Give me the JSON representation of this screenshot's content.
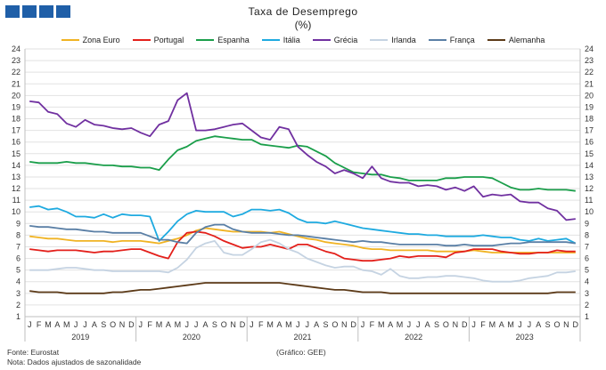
{
  "header": {
    "title": "Taxa de Desemprego",
    "unit": "(%)"
  },
  "footer": {
    "source": "Fonte: Eurostat",
    "note": "Nota: Dados ajustados de sazonalidade",
    "credit": "(Gráfico: GEE)"
  },
  "chart_data": {
    "type": "line",
    "title": "Taxa de Desemprego",
    "subtitle": "(%)",
    "xlabel": "",
    "ylabel": "",
    "ylim": [
      1,
      24
    ],
    "y_ticks": [
      1,
      2,
      3,
      4,
      5,
      6,
      7,
      8,
      9,
      10,
      11,
      12,
      13,
      14,
      15,
      16,
      17,
      18,
      19,
      20,
      21,
      22,
      23,
      24
    ],
    "grid": "horizontal",
    "legend_position": "top",
    "years": [
      "2019",
      "2020",
      "2021",
      "2022",
      "2023"
    ],
    "month_labels": [
      "J",
      "F",
      "M",
      "A",
      "M",
      "J",
      "J",
      "A",
      "S",
      "O",
      "N",
      "D"
    ],
    "series": [
      {
        "name": "Zona Euro",
        "color": "#f0b323",
        "values": [
          7.9,
          7.8,
          7.7,
          7.7,
          7.6,
          7.5,
          7.5,
          7.5,
          7.5,
          7.4,
          7.5,
          7.5,
          7.5,
          7.4,
          7.3,
          7.5,
          7.7,
          8.0,
          8.4,
          8.6,
          8.5,
          8.4,
          8.3,
          8.3,
          8.3,
          8.3,
          8.2,
          8.3,
          8.1,
          7.9,
          7.7,
          7.6,
          7.4,
          7.3,
          7.2,
          7.1,
          6.9,
          6.8,
          6.8,
          6.7,
          6.7,
          6.7,
          6.7,
          6.7,
          6.6,
          6.6,
          6.6,
          6.6,
          6.7,
          6.6,
          6.5,
          6.5,
          6.5,
          6.5,
          6.5,
          6.5,
          6.5,
          6.5,
          6.5,
          6.5
        ]
      },
      {
        "name": "Portugal",
        "color": "#e3201b",
        "values": [
          6.8,
          6.7,
          6.6,
          6.7,
          6.7,
          6.7,
          6.6,
          6.5,
          6.6,
          6.6,
          6.7,
          6.8,
          6.8,
          6.5,
          6.2,
          6.0,
          7.4,
          8.2,
          8.3,
          8.2,
          7.9,
          7.5,
          7.2,
          6.9,
          7.0,
          7.0,
          7.2,
          7.0,
          6.8,
          7.2,
          7.2,
          6.9,
          6.6,
          6.4,
          6.0,
          5.9,
          5.8,
          5.8,
          5.9,
          6.0,
          6.2,
          6.1,
          6.2,
          6.2,
          6.2,
          6.1,
          6.5,
          6.6,
          6.8,
          6.8,
          6.8,
          6.6,
          6.5,
          6.4,
          6.4,
          6.5,
          6.5,
          6.7,
          6.6,
          6.6
        ]
      },
      {
        "name": "Espanha",
        "color": "#1a9e4a",
        "values": [
          14.3,
          14.2,
          14.2,
          14.2,
          14.3,
          14.2,
          14.2,
          14.1,
          14.0,
          14.0,
          13.9,
          13.9,
          13.8,
          13.8,
          13.6,
          14.5,
          15.3,
          15.6,
          16.1,
          16.3,
          16.5,
          16.4,
          16.3,
          16.2,
          16.2,
          15.8,
          15.7,
          15.6,
          15.5,
          15.7,
          15.6,
          15.2,
          14.8,
          14.2,
          13.8,
          13.4,
          13.3,
          13.2,
          13.2,
          13.0,
          12.9,
          12.7,
          12.7,
          12.7,
          12.7,
          12.9,
          12.9,
          13.0,
          13.0,
          13.0,
          12.9,
          12.5,
          12.1,
          11.9,
          11.9,
          12.0,
          11.9,
          11.9,
          11.9,
          11.8
        ]
      },
      {
        "name": "Itália",
        "color": "#1eaae0",
        "values": [
          10.4,
          10.5,
          10.2,
          10.3,
          10.0,
          9.6,
          9.6,
          9.5,
          9.8,
          9.5,
          9.8,
          9.7,
          9.7,
          9.6,
          7.5,
          8.3,
          9.2,
          9.8,
          10.1,
          10.0,
          10.0,
          10.0,
          9.6,
          9.8,
          10.2,
          10.2,
          10.1,
          10.2,
          9.9,
          9.4,
          9.1,
          9.1,
          9.0,
          9.2,
          9.0,
          8.8,
          8.6,
          8.5,
          8.4,
          8.3,
          8.2,
          8.1,
          8.1,
          8.0,
          8.0,
          7.9,
          7.9,
          7.9,
          7.9,
          8.0,
          7.9,
          7.8,
          7.8,
          7.6,
          7.5,
          7.7,
          7.5,
          7.6,
          7.7,
          7.3
        ]
      },
      {
        "name": "Grécia",
        "color": "#7030a0",
        "values": [
          19.5,
          19.4,
          18.6,
          18.4,
          17.6,
          17.3,
          17.9,
          17.5,
          17.4,
          17.2,
          17.1,
          17.2,
          16.8,
          16.5,
          17.5,
          17.8,
          19.6,
          20.2,
          17.0,
          17.0,
          17.1,
          17.3,
          17.5,
          17.6,
          17.0,
          16.4,
          16.2,
          17.3,
          17.1,
          15.6,
          14.9,
          14.3,
          13.9,
          13.3,
          13.6,
          13.3,
          12.9,
          13.9,
          12.9,
          12.6,
          12.5,
          12.5,
          12.2,
          12.3,
          12.2,
          11.9,
          12.1,
          11.8,
          12.2,
          11.3,
          11.5,
          11.4,
          11.5,
          10.9,
          10.8,
          10.8,
          10.3,
          10.1,
          9.3,
          9.4
        ]
      },
      {
        "name": "Irlanda",
        "color": "#c5d3e2",
        "values": [
          5.0,
          5.0,
          5.0,
          5.1,
          5.2,
          5.2,
          5.1,
          5.0,
          5.0,
          4.9,
          4.9,
          4.9,
          4.9,
          4.9,
          4.9,
          4.8,
          5.2,
          5.9,
          6.9,
          7.3,
          7.5,
          6.5,
          6.3,
          6.3,
          6.8,
          7.4,
          7.6,
          7.3,
          6.8,
          6.5,
          6.0,
          5.7,
          5.4,
          5.2,
          5.3,
          5.3,
          5.0,
          4.9,
          4.6,
          5.1,
          4.5,
          4.3,
          4.3,
          4.4,
          4.4,
          4.5,
          4.5,
          4.4,
          4.3,
          4.1,
          4.0,
          4.0,
          4.0,
          4.1,
          4.3,
          4.4,
          4.5,
          4.8,
          4.8,
          4.9
        ]
      },
      {
        "name": "França",
        "color": "#5a7fa5",
        "values": [
          8.8,
          8.7,
          8.7,
          8.6,
          8.5,
          8.5,
          8.4,
          8.3,
          8.3,
          8.2,
          8.2,
          8.2,
          8.2,
          7.9,
          7.6,
          7.6,
          7.4,
          7.3,
          8.2,
          8.7,
          8.9,
          8.9,
          8.5,
          8.3,
          8.2,
          8.2,
          8.2,
          8.1,
          8.0,
          8.0,
          7.9,
          7.8,
          7.7,
          7.6,
          7.5,
          7.4,
          7.5,
          7.4,
          7.4,
          7.3,
          7.2,
          7.2,
          7.2,
          7.2,
          7.2,
          7.1,
          7.1,
          7.2,
          7.1,
          7.1,
          7.1,
          7.2,
          7.3,
          7.3,
          7.4,
          7.4,
          7.4,
          7.4,
          7.4,
          7.3
        ]
      },
      {
        "name": "Alemanha",
        "color": "#5c3a18",
        "values": [
          3.2,
          3.1,
          3.1,
          3.1,
          3.0,
          3.0,
          3.0,
          3.0,
          3.0,
          3.1,
          3.1,
          3.2,
          3.3,
          3.3,
          3.4,
          3.5,
          3.6,
          3.7,
          3.8,
          3.9,
          3.9,
          3.9,
          3.9,
          3.9,
          3.9,
          3.9,
          3.9,
          3.9,
          3.8,
          3.7,
          3.6,
          3.5,
          3.4,
          3.3,
          3.3,
          3.2,
          3.1,
          3.1,
          3.1,
          3.0,
          3.0,
          3.0,
          3.0,
          3.0,
          3.0,
          3.0,
          3.0,
          3.0,
          3.0,
          3.0,
          3.0,
          3.0,
          3.0,
          3.0,
          3.0,
          3.0,
          3.0,
          3.1,
          3.1,
          3.1
        ]
      }
    ]
  }
}
